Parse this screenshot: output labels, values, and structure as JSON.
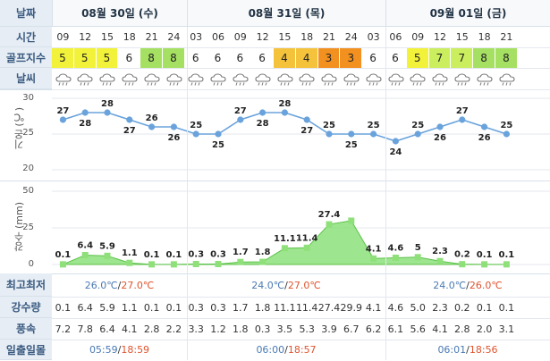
{
  "labels": {
    "date": "날짜",
    "time": "시간",
    "golf": "골프지수",
    "weather": "날씨",
    "temp_axis": "기온 (℃)",
    "rain_axis": "강수 (mm)",
    "minmax": "최고최저",
    "precip": "강수량",
    "wind": "풍속",
    "sun": "일출일몰"
  },
  "days": [
    {
      "label": "08월 30일 (수)",
      "min": "26.0℃",
      "max": "27.0℃",
      "sunrise": "05:59",
      "sunset": "18:59"
    },
    {
      "label": "08월 31일 (목)",
      "min": "24.0℃",
      "max": "27.0℃",
      "sunrise": "06:00",
      "sunset": "18:57"
    },
    {
      "label": "09월 01일 (금)",
      "min": "24.0℃",
      "max": "26.0℃",
      "sunrise": "06:01",
      "sunset": "18:56"
    }
  ],
  "separators": [
    "/",
    "/",
    "/",
    "/",
    "/",
    "/"
  ],
  "hours": [
    "09",
    "12",
    "15",
    "18",
    "21",
    "24",
    "03",
    "06",
    "09",
    "12",
    "15",
    "18",
    "21",
    "24",
    "03",
    "06",
    "09",
    "12",
    "15",
    "18",
    "21"
  ],
  "golf_index": [
    "5",
    "5",
    "5",
    "6",
    "8",
    "8",
    "6",
    "6",
    "6",
    "6",
    "4",
    "4",
    "3",
    "3",
    "6",
    "6",
    "5",
    "7",
    "7",
    "8",
    "8"
  ],
  "golf_colors": {
    "3": "#f29020",
    "4": "#f5c23c",
    "5": "#f2f23a",
    "6": "#ffffff",
    "7": "#cbee5e",
    "8": "#a6e062"
  },
  "weather_icon": "rain-cloud-icon",
  "chart_data": [
    {
      "type": "line",
      "ylabel": "기온 (℃)",
      "ylim": [
        20,
        30
      ],
      "yticks": [
        "20",
        "25",
        "30"
      ],
      "categories": [
        "09",
        "12",
        "15",
        "18",
        "21",
        "24",
        "03",
        "06",
        "09",
        "12",
        "15",
        "18",
        "21",
        "24",
        "03",
        "06",
        "09",
        "12",
        "15",
        "18",
        "21"
      ],
      "values": [
        27,
        28,
        28,
        27,
        26,
        26,
        25,
        25,
        27,
        28,
        28,
        27,
        25,
        25,
        25,
        24,
        25,
        26,
        27,
        26,
        25
      ],
      "value_labels": [
        "27",
        "28",
        "28",
        "27",
        "26",
        "26",
        "25",
        "25",
        "27",
        "28",
        "28",
        "27",
        "25",
        "25",
        "25",
        "24",
        "25",
        "26",
        "27",
        "26",
        "25"
      ],
      "color": "#6aa3dc"
    },
    {
      "type": "area",
      "ylabel": "강수 (mm)",
      "ylim": [
        0,
        50
      ],
      "yticks": [
        "0",
        "25",
        "50"
      ],
      "categories": [
        "09",
        "12",
        "15",
        "18",
        "21",
        "24",
        "03",
        "06",
        "09",
        "12",
        "15",
        "18",
        "21",
        "24",
        "03",
        "06",
        "09",
        "12",
        "15",
        "18",
        "21"
      ],
      "values": [
        0.1,
        6.4,
        5.9,
        1.1,
        0.1,
        0.1,
        0.3,
        0.3,
        1.7,
        1.8,
        11.1,
        11.4,
        27.4,
        29.9,
        4.1,
        4.6,
        5.0,
        2.3,
        0.2,
        0.1,
        0.1
      ],
      "value_labels": [
        "0.1",
        "6.4",
        "5.9",
        "1.1",
        "0.1",
        "0.1",
        "0.3",
        "0.3",
        "1.7",
        "1.8",
        "11.1",
        "11.4",
        "27.4",
        "",
        "4.1",
        "4.6",
        "5",
        "2.3",
        "0.2",
        "0.1",
        "0.1"
      ],
      "color": "#7edc6a"
    }
  ],
  "precip_row": [
    "0.1",
    "6.4",
    "5.9",
    "1.1",
    "0.1",
    "0.1",
    "0.3",
    "0.3",
    "1.7",
    "1.8",
    "11.1",
    "11.4",
    "27.4",
    "29.9",
    "4.1",
    "4.6",
    "5.0",
    "2.3",
    "0.2",
    "0.1",
    "0.1"
  ],
  "wind_row": [
    "7.2",
    "7.8",
    "6.4",
    "4.1",
    "2.8",
    "2.2",
    "3.3",
    "1.2",
    "1.8",
    "0.3",
    "3.5",
    "5.3",
    "3.9",
    "6.7",
    "6.2",
    "6.1",
    "5.6",
    "4.1",
    "2.8",
    "2.0",
    "3.1"
  ]
}
